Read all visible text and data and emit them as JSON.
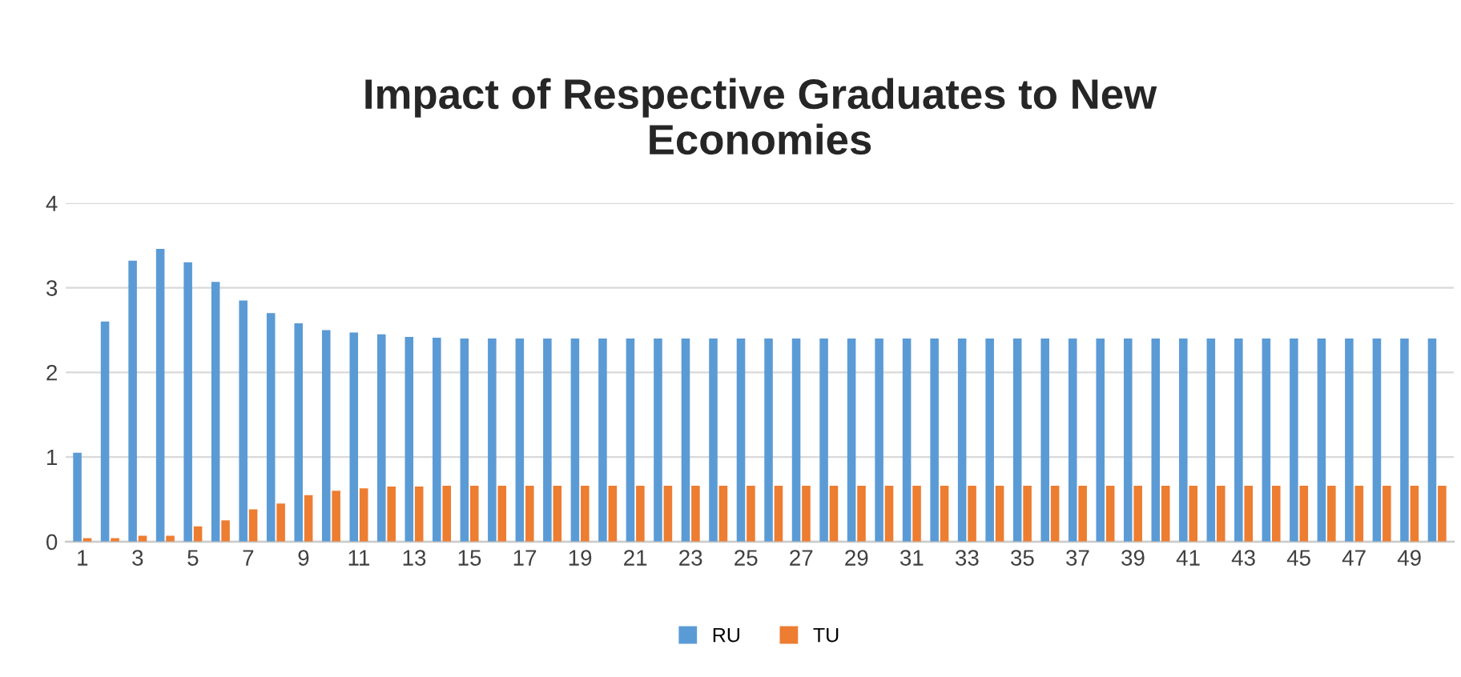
{
  "chart_data": {
    "type": "bar",
    "title": "Impact of Respective Graduates to New\nEconomies",
    "categories": [
      "1",
      null,
      "3",
      null,
      "5",
      null,
      "7",
      null,
      "9",
      null,
      "11",
      null,
      "13",
      null,
      "15",
      null,
      "17",
      null,
      "19",
      null,
      "21",
      null,
      "23",
      null,
      "25",
      null,
      "27",
      null,
      "29",
      null,
      "31",
      null,
      "33",
      null,
      "35",
      null,
      "37",
      null,
      "39",
      null,
      "41",
      null,
      "43",
      null,
      "45",
      null,
      "47",
      null,
      "49",
      null
    ],
    "series": [
      {
        "name": "RU",
        "color": "#5b9bd5",
        "values": [
          1.05,
          2.6,
          3.32,
          3.46,
          3.3,
          3.07,
          2.85,
          2.7,
          2.58,
          2.5,
          2.47,
          2.45,
          2.42,
          2.41,
          2.4,
          2.4,
          2.4,
          2.4,
          2.4,
          2.4,
          2.4,
          2.4,
          2.4,
          2.4,
          2.4,
          2.4,
          2.4,
          2.4,
          2.4,
          2.4,
          2.4,
          2.4,
          2.4,
          2.4,
          2.4,
          2.4,
          2.4,
          2.4,
          2.4,
          2.4,
          2.4,
          2.4,
          2.4,
          2.4,
          2.4,
          2.4,
          2.4,
          2.4,
          2.4,
          2.4
        ]
      },
      {
        "name": "TU",
        "color": "#ed7d31",
        "values": [
          0.04,
          0.04,
          0.07,
          0.07,
          0.18,
          0.25,
          0.38,
          0.45,
          0.55,
          0.6,
          0.63,
          0.65,
          0.65,
          0.66,
          0.66,
          0.66,
          0.66,
          0.66,
          0.66,
          0.66,
          0.66,
          0.66,
          0.66,
          0.66,
          0.66,
          0.66,
          0.66,
          0.66,
          0.66,
          0.66,
          0.66,
          0.66,
          0.66,
          0.66,
          0.66,
          0.66,
          0.66,
          0.66,
          0.66,
          0.66,
          0.66,
          0.66,
          0.66,
          0.66,
          0.66,
          0.66,
          0.66,
          0.66,
          0.66,
          0.66
        ]
      }
    ],
    "ylim": [
      0,
      4
    ],
    "yticks": [
      0,
      1,
      2,
      3,
      4
    ],
    "grid": "y",
    "legend": "bottom"
  }
}
